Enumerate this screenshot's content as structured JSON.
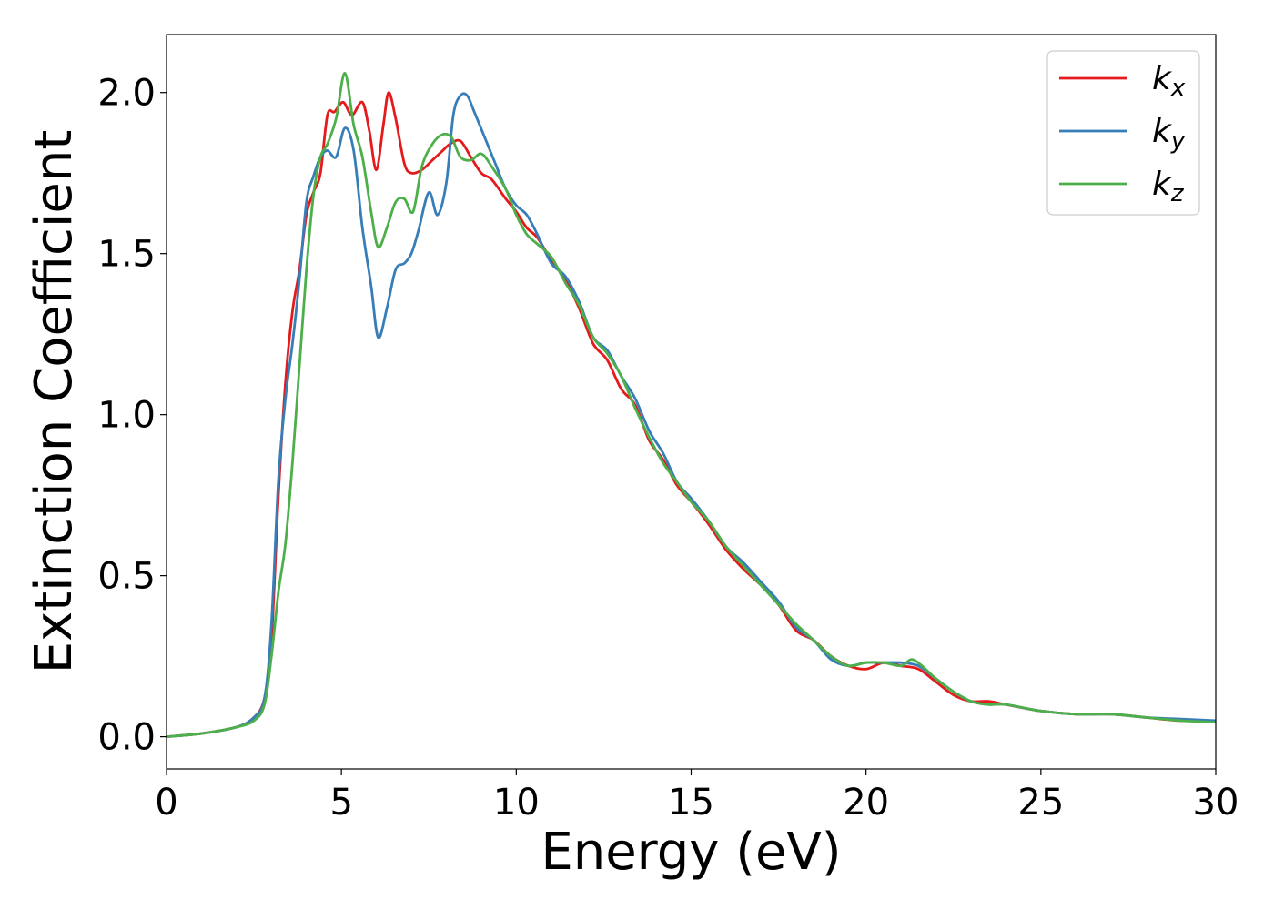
{
  "chart_data": {
    "type": "line",
    "title": "",
    "xlabel": "Energy (eV)",
    "ylabel": "Extinction Coefficient",
    "xlim": [
      0,
      30
    ],
    "ylim": [
      -0.1,
      2.18
    ],
    "xticks": [
      0,
      5,
      10,
      15,
      20,
      25,
      30
    ],
    "yticks": [
      0.0,
      0.5,
      1.0,
      1.5,
      2.0
    ],
    "xtick_labels": [
      "0",
      "5",
      "10",
      "15",
      "20",
      "25",
      "30"
    ],
    "ytick_labels": [
      "0.0",
      "0.5",
      "1.0",
      "1.5",
      "2.0"
    ],
    "grid": false,
    "legend_position": "top-right",
    "series": [
      {
        "name": "k",
        "subscript": "x",
        "color": "#e41a1c",
        "points": [
          [
            0,
            0
          ],
          [
            1,
            0.01
          ],
          [
            2,
            0.03
          ],
          [
            2.5,
            0.06
          ],
          [
            2.8,
            0.12
          ],
          [
            3.0,
            0.3
          ],
          [
            3.2,
            0.75
          ],
          [
            3.4,
            1.1
          ],
          [
            3.6,
            1.32
          ],
          [
            3.8,
            1.45
          ],
          [
            4.0,
            1.62
          ],
          [
            4.2,
            1.69
          ],
          [
            4.4,
            1.75
          ],
          [
            4.6,
            1.93
          ],
          [
            4.8,
            1.94
          ],
          [
            5.05,
            1.97
          ],
          [
            5.3,
            1.93
          ],
          [
            5.6,
            1.97
          ],
          [
            5.8,
            1.88
          ],
          [
            6.0,
            1.76
          ],
          [
            6.2,
            1.9
          ],
          [
            6.35,
            2.0
          ],
          [
            6.55,
            1.92
          ],
          [
            6.8,
            1.78
          ],
          [
            7.0,
            1.75
          ],
          [
            7.3,
            1.76
          ],
          [
            7.6,
            1.79
          ],
          [
            7.9,
            1.82
          ],
          [
            8.1,
            1.84
          ],
          [
            8.4,
            1.85
          ],
          [
            8.7,
            1.8
          ],
          [
            9.0,
            1.75
          ],
          [
            9.3,
            1.73
          ],
          [
            9.7,
            1.67
          ],
          [
            10.0,
            1.63
          ],
          [
            10.3,
            1.58
          ],
          [
            10.6,
            1.55
          ],
          [
            11.0,
            1.48
          ],
          [
            11.4,
            1.42
          ],
          [
            11.8,
            1.33
          ],
          [
            12.2,
            1.22
          ],
          [
            12.6,
            1.17
          ],
          [
            13.0,
            1.08
          ],
          [
            13.4,
            1.03
          ],
          [
            13.8,
            0.92
          ],
          [
            14.2,
            0.86
          ],
          [
            14.6,
            0.78
          ],
          [
            15.0,
            0.73
          ],
          [
            15.5,
            0.66
          ],
          [
            16.0,
            0.58
          ],
          [
            16.5,
            0.52
          ],
          [
            17.0,
            0.47
          ],
          [
            17.5,
            0.41
          ],
          [
            18.0,
            0.33
          ],
          [
            18.5,
            0.3
          ],
          [
            19.0,
            0.25
          ],
          [
            19.5,
            0.22
          ],
          [
            20.0,
            0.21
          ],
          [
            20.5,
            0.23
          ],
          [
            21.0,
            0.22
          ],
          [
            21.5,
            0.21
          ],
          [
            22.0,
            0.17
          ],
          [
            22.5,
            0.13
          ],
          [
            23.0,
            0.11
          ],
          [
            23.5,
            0.11
          ],
          [
            24.0,
            0.1
          ],
          [
            25.0,
            0.08
          ],
          [
            26.0,
            0.07
          ],
          [
            27.0,
            0.07
          ],
          [
            28.0,
            0.06
          ],
          [
            29.0,
            0.05
          ],
          [
            30.0,
            0.05
          ]
        ]
      },
      {
        "name": "k",
        "subscript": "y",
        "color": "#377eb8",
        "points": [
          [
            0,
            0
          ],
          [
            1,
            0.01
          ],
          [
            2,
            0.03
          ],
          [
            2.5,
            0.06
          ],
          [
            2.8,
            0.12
          ],
          [
            3.0,
            0.35
          ],
          [
            3.2,
            0.8
          ],
          [
            3.4,
            1.05
          ],
          [
            3.6,
            1.22
          ],
          [
            3.8,
            1.42
          ],
          [
            4.0,
            1.66
          ],
          [
            4.2,
            1.74
          ],
          [
            4.4,
            1.8
          ],
          [
            4.6,
            1.82
          ],
          [
            4.85,
            1.8
          ],
          [
            5.1,
            1.89
          ],
          [
            5.35,
            1.82
          ],
          [
            5.6,
            1.58
          ],
          [
            5.85,
            1.4
          ],
          [
            6.05,
            1.24
          ],
          [
            6.3,
            1.33
          ],
          [
            6.55,
            1.45
          ],
          [
            6.8,
            1.47
          ],
          [
            7.0,
            1.5
          ],
          [
            7.2,
            1.57
          ],
          [
            7.5,
            1.69
          ],
          [
            7.75,
            1.62
          ],
          [
            8.0,
            1.72
          ],
          [
            8.2,
            1.93
          ],
          [
            8.4,
            1.99
          ],
          [
            8.6,
            1.99
          ],
          [
            8.8,
            1.94
          ],
          [
            9.1,
            1.86
          ],
          [
            9.4,
            1.78
          ],
          [
            9.7,
            1.7
          ],
          [
            10.0,
            1.65
          ],
          [
            10.3,
            1.62
          ],
          [
            10.6,
            1.56
          ],
          [
            11.0,
            1.47
          ],
          [
            11.4,
            1.43
          ],
          [
            11.8,
            1.35
          ],
          [
            12.2,
            1.24
          ],
          [
            12.6,
            1.2
          ],
          [
            13.0,
            1.12
          ],
          [
            13.4,
            1.05
          ],
          [
            13.8,
            0.95
          ],
          [
            14.2,
            0.88
          ],
          [
            14.6,
            0.79
          ],
          [
            15.0,
            0.74
          ],
          [
            15.5,
            0.67
          ],
          [
            16.0,
            0.59
          ],
          [
            16.5,
            0.54
          ],
          [
            17.0,
            0.48
          ],
          [
            17.5,
            0.42
          ],
          [
            18.0,
            0.34
          ],
          [
            18.5,
            0.3
          ],
          [
            19.0,
            0.24
          ],
          [
            19.5,
            0.22
          ],
          [
            20.0,
            0.23
          ],
          [
            20.5,
            0.23
          ],
          [
            21.0,
            0.23
          ],
          [
            21.5,
            0.22
          ],
          [
            22.0,
            0.18
          ],
          [
            22.5,
            0.14
          ],
          [
            23.0,
            0.11
          ],
          [
            23.5,
            0.1
          ],
          [
            24.0,
            0.1
          ],
          [
            25.0,
            0.08
          ],
          [
            26.0,
            0.07
          ],
          [
            27.0,
            0.07
          ],
          [
            28.0,
            0.06
          ],
          [
            29.0,
            0.055
          ],
          [
            30.0,
            0.05
          ]
        ]
      },
      {
        "name": "k",
        "subscript": "z",
        "color": "#4daf4a",
        "points": [
          [
            0,
            0
          ],
          [
            1,
            0.01
          ],
          [
            2,
            0.03
          ],
          [
            2.5,
            0.05
          ],
          [
            2.8,
            0.1
          ],
          [
            3.0,
            0.25
          ],
          [
            3.2,
            0.45
          ],
          [
            3.4,
            0.6
          ],
          [
            3.6,
            0.85
          ],
          [
            3.8,
            1.15
          ],
          [
            4.0,
            1.45
          ],
          [
            4.2,
            1.68
          ],
          [
            4.4,
            1.8
          ],
          [
            4.6,
            1.84
          ],
          [
            4.85,
            1.92
          ],
          [
            5.1,
            2.06
          ],
          [
            5.35,
            1.9
          ],
          [
            5.6,
            1.8
          ],
          [
            5.85,
            1.63
          ],
          [
            6.05,
            1.52
          ],
          [
            6.3,
            1.58
          ],
          [
            6.55,
            1.66
          ],
          [
            6.8,
            1.67
          ],
          [
            7.05,
            1.63
          ],
          [
            7.3,
            1.77
          ],
          [
            7.6,
            1.84
          ],
          [
            7.9,
            1.87
          ],
          [
            8.15,
            1.86
          ],
          [
            8.4,
            1.8
          ],
          [
            8.7,
            1.79
          ],
          [
            9.0,
            1.81
          ],
          [
            9.3,
            1.77
          ],
          [
            9.7,
            1.7
          ],
          [
            10.0,
            1.62
          ],
          [
            10.3,
            1.56
          ],
          [
            10.6,
            1.53
          ],
          [
            11.0,
            1.49
          ],
          [
            11.4,
            1.41
          ],
          [
            11.8,
            1.34
          ],
          [
            12.2,
            1.24
          ],
          [
            12.6,
            1.19
          ],
          [
            13.0,
            1.12
          ],
          [
            13.4,
            1.02
          ],
          [
            13.8,
            0.93
          ],
          [
            14.2,
            0.85
          ],
          [
            14.6,
            0.79
          ],
          [
            15.0,
            0.73
          ],
          [
            15.5,
            0.67
          ],
          [
            16.0,
            0.59
          ],
          [
            16.5,
            0.53
          ],
          [
            17.0,
            0.47
          ],
          [
            17.5,
            0.41
          ],
          [
            18.0,
            0.35
          ],
          [
            18.5,
            0.3
          ],
          [
            19.0,
            0.25
          ],
          [
            19.5,
            0.22
          ],
          [
            20.0,
            0.23
          ],
          [
            20.5,
            0.23
          ],
          [
            21.0,
            0.22
          ],
          [
            21.3,
            0.24
          ],
          [
            21.6,
            0.22
          ],
          [
            22.0,
            0.18
          ],
          [
            22.5,
            0.14
          ],
          [
            23.0,
            0.11
          ],
          [
            23.5,
            0.1
          ],
          [
            24.0,
            0.1
          ],
          [
            25.0,
            0.08
          ],
          [
            26.0,
            0.07
          ],
          [
            27.0,
            0.07
          ],
          [
            28.0,
            0.06
          ],
          [
            29.0,
            0.05
          ],
          [
            30.0,
            0.045
          ]
        ]
      }
    ]
  }
}
